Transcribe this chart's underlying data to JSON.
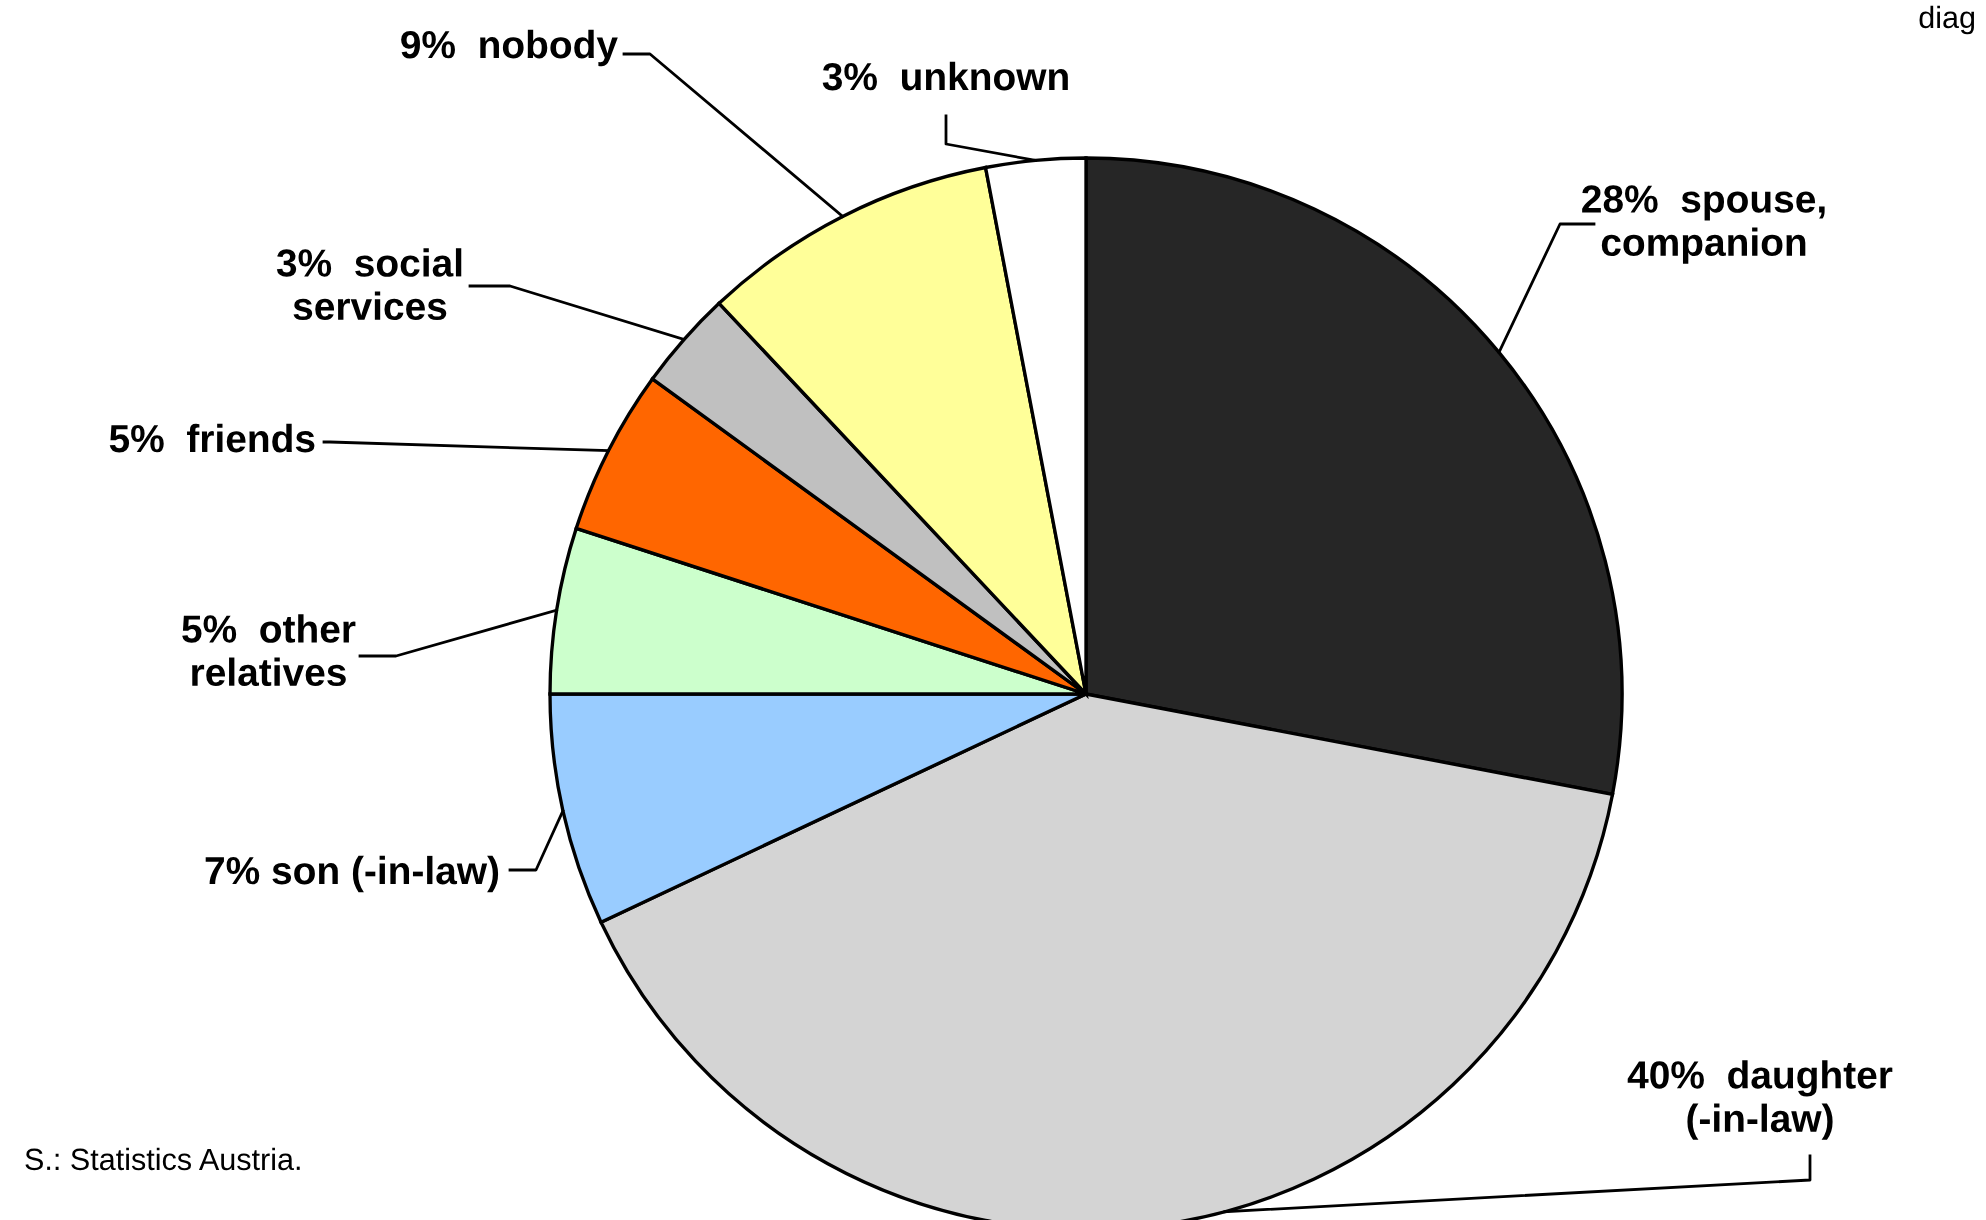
{
  "chart_data": {
    "type": "pie",
    "categories": [
      "spouse,\ncompanion",
      "daughter\n(-in-law)",
      "son (-in-law)",
      "other\nrelatives",
      "friends",
      "social\nservices",
      "nobody",
      "unknown"
    ],
    "values": [
      28,
      40,
      7,
      5,
      5,
      3,
      9,
      3
    ],
    "value_labels": [
      "28%",
      "40%",
      "7%",
      "5%",
      "5%",
      "3%",
      "9%",
      "3%"
    ],
    "colors": [
      "#262626",
      "#d4d4d4",
      "#99ccff",
      "#ccffcc",
      "#ff6600",
      "#c0c0c0",
      "#ffff99",
      "#ffffff"
    ],
    "annotations": [
      "S.: Statistics Austria.",
      "diag"
    ]
  }
}
